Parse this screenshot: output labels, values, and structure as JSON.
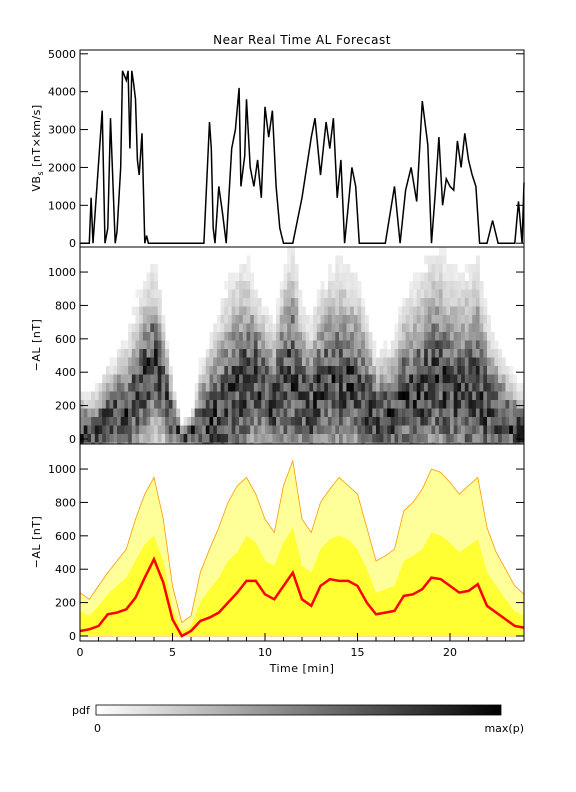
{
  "chart_data": [
    {
      "type": "line",
      "title": "Near Real Time AL Forecast",
      "ylabel": "VB_s [nT×km/s]",
      "ylabel_main": "VB",
      "ylabel_sub": "s",
      "ylabel_rest": " [nT×km/s]",
      "xlim": [
        0,
        24
      ],
      "ylim": [
        -100,
        5100
      ],
      "yticks": [
        0,
        1000,
        2000,
        3000,
        4000,
        5000
      ],
      "x": [
        0,
        0.5,
        0.6,
        0.7,
        1.2,
        1.35,
        1.5,
        1.65,
        1.9,
        2.0,
        2.2,
        2.3,
        2.5,
        2.6,
        2.7,
        2.8,
        2.9,
        3.0,
        3.1,
        3.2,
        3.35,
        3.5,
        3.6,
        3.7,
        3.8,
        4.0,
        4.3,
        5.0,
        6.0,
        6.7,
        7.0,
        7.1,
        7.2,
        7.3,
        7.5,
        7.7,
        7.9,
        8.2,
        8.4,
        8.6,
        8.7,
        8.9,
        9.0,
        9.2,
        9.4,
        9.6,
        9.8,
        10.0,
        10.2,
        10.4,
        10.6,
        10.8,
        11.0,
        11.2,
        11.5,
        12.0,
        12.5,
        12.7,
        13.0,
        13.3,
        13.5,
        13.7,
        13.9,
        14.1,
        14.3,
        14.5,
        14.7,
        14.9,
        15.1,
        15.5,
        16.0,
        16.5,
        17.0,
        17.3,
        17.6,
        17.9,
        18.2,
        18.5,
        18.8,
        19.0,
        19.2,
        19.4,
        19.6,
        19.8,
        20.0,
        20.2,
        20.4,
        20.6,
        20.8,
        21.0,
        21.2,
        21.4,
        21.6,
        21.8,
        22.0,
        22.3,
        22.6,
        23.0,
        23.5,
        23.7,
        23.9,
        24.0
      ],
      "values": [
        0,
        0,
        1200,
        0,
        3500,
        0,
        400,
        3300,
        0,
        300,
        2000,
        4550,
        4300,
        4550,
        2500,
        4550,
        4200,
        3800,
        2200,
        1800,
        2900,
        0,
        200,
        0,
        0,
        0,
        0,
        0,
        0,
        0,
        3200,
        2500,
        400,
        0,
        1500,
        800,
        0,
        2500,
        3000,
        4100,
        1500,
        2300,
        3800,
        2000,
        1500,
        2200,
        1200,
        3600,
        2800,
        3500,
        1500,
        400,
        0,
        0,
        0,
        1200,
        2800,
        3300,
        1800,
        3200,
        2500,
        3300,
        1200,
        2200,
        0,
        1000,
        2000,
        1500,
        0,
        0,
        0,
        0,
        1500,
        0,
        1400,
        2000,
        1100,
        3750,
        2600,
        0,
        1300,
        2800,
        1000,
        1700,
        1500,
        1400,
        2700,
        2000,
        2900,
        2200,
        1800,
        1500,
        0,
        0,
        0,
        600,
        0,
        0,
        0,
        1100,
        0,
        1600
      ],
      "line_color": "#000000"
    },
    {
      "type": "heatmap",
      "ylabel": "−AL [nT]",
      "xlim": [
        0,
        24
      ],
      "ylim": [
        -30,
        1150
      ],
      "yticks": [
        0,
        200,
        400,
        600,
        800,
        1000
      ],
      "colormap": "white-to-black (pdf)"
    },
    {
      "type": "area",
      "ylabel": "−AL [nT]",
      "xlabel": "Time [min]",
      "xlim": [
        0,
        24
      ],
      "xticks": [
        0,
        5,
        10,
        15,
        20
      ],
      "ylim": [
        -30,
        1150
      ],
      "yticks": [
        0,
        200,
        400,
        600,
        800,
        1000
      ],
      "x": [
        0,
        0.5,
        1.0,
        1.5,
        2.0,
        2.5,
        3.0,
        3.5,
        4.0,
        4.5,
        5.0,
        5.5,
        6.0,
        6.5,
        7.0,
        7.5,
        8.0,
        8.5,
        9.0,
        9.5,
        10.0,
        10.5,
        11.0,
        11.5,
        12.0,
        12.5,
        13.0,
        13.5,
        14.0,
        14.5,
        15.0,
        15.5,
        16.0,
        16.5,
        17.0,
        17.5,
        18.0,
        18.5,
        19.0,
        19.5,
        20.0,
        20.5,
        21.0,
        21.5,
        22.0,
        22.5,
        23.0,
        23.5,
        24.0
      ],
      "series": [
        {
          "name": "median",
          "color": "#ff0000",
          "values": [
            30,
            40,
            60,
            130,
            140,
            160,
            230,
            350,
            460,
            320,
            100,
            0,
            30,
            90,
            110,
            140,
            200,
            260,
            330,
            330,
            250,
            220,
            300,
            380,
            220,
            180,
            300,
            340,
            330,
            330,
            300,
            200,
            130,
            140,
            150,
            240,
            250,
            280,
            350,
            340,
            300,
            260,
            270,
            310,
            180,
            140,
            100,
            60,
            50
          ]
        },
        {
          "name": "band_inner_upper",
          "color": "#ffff33",
          "values": [
            150,
            120,
            180,
            250,
            300,
            350,
            450,
            550,
            600,
            450,
            160,
            30,
            60,
            200,
            280,
            350,
            450,
            500,
            600,
            560,
            450,
            420,
            560,
            650,
            420,
            380,
            520,
            580,
            600,
            580,
            520,
            400,
            260,
            280,
            300,
            450,
            480,
            520,
            620,
            600,
            560,
            500,
            540,
            580,
            380,
            300,
            220,
            150,
            120
          ]
        },
        {
          "name": "band_outer_upper",
          "color": "#ffff99",
          "values": [
            260,
            220,
            300,
            380,
            450,
            520,
            700,
            850,
            950,
            700,
            300,
            80,
            120,
            380,
            520,
            650,
            800,
            900,
            950,
            850,
            700,
            620,
            900,
            1050,
            700,
            620,
            800,
            880,
            950,
            900,
            850,
            650,
            450,
            480,
            520,
            750,
            800,
            880,
            1000,
            980,
            920,
            850,
            900,
            950,
            650,
            500,
            400,
            300,
            250
          ]
        }
      ]
    }
  ],
  "colorbar": {
    "label": "pdf",
    "min_label": "0",
    "max_label": "max(p)"
  }
}
